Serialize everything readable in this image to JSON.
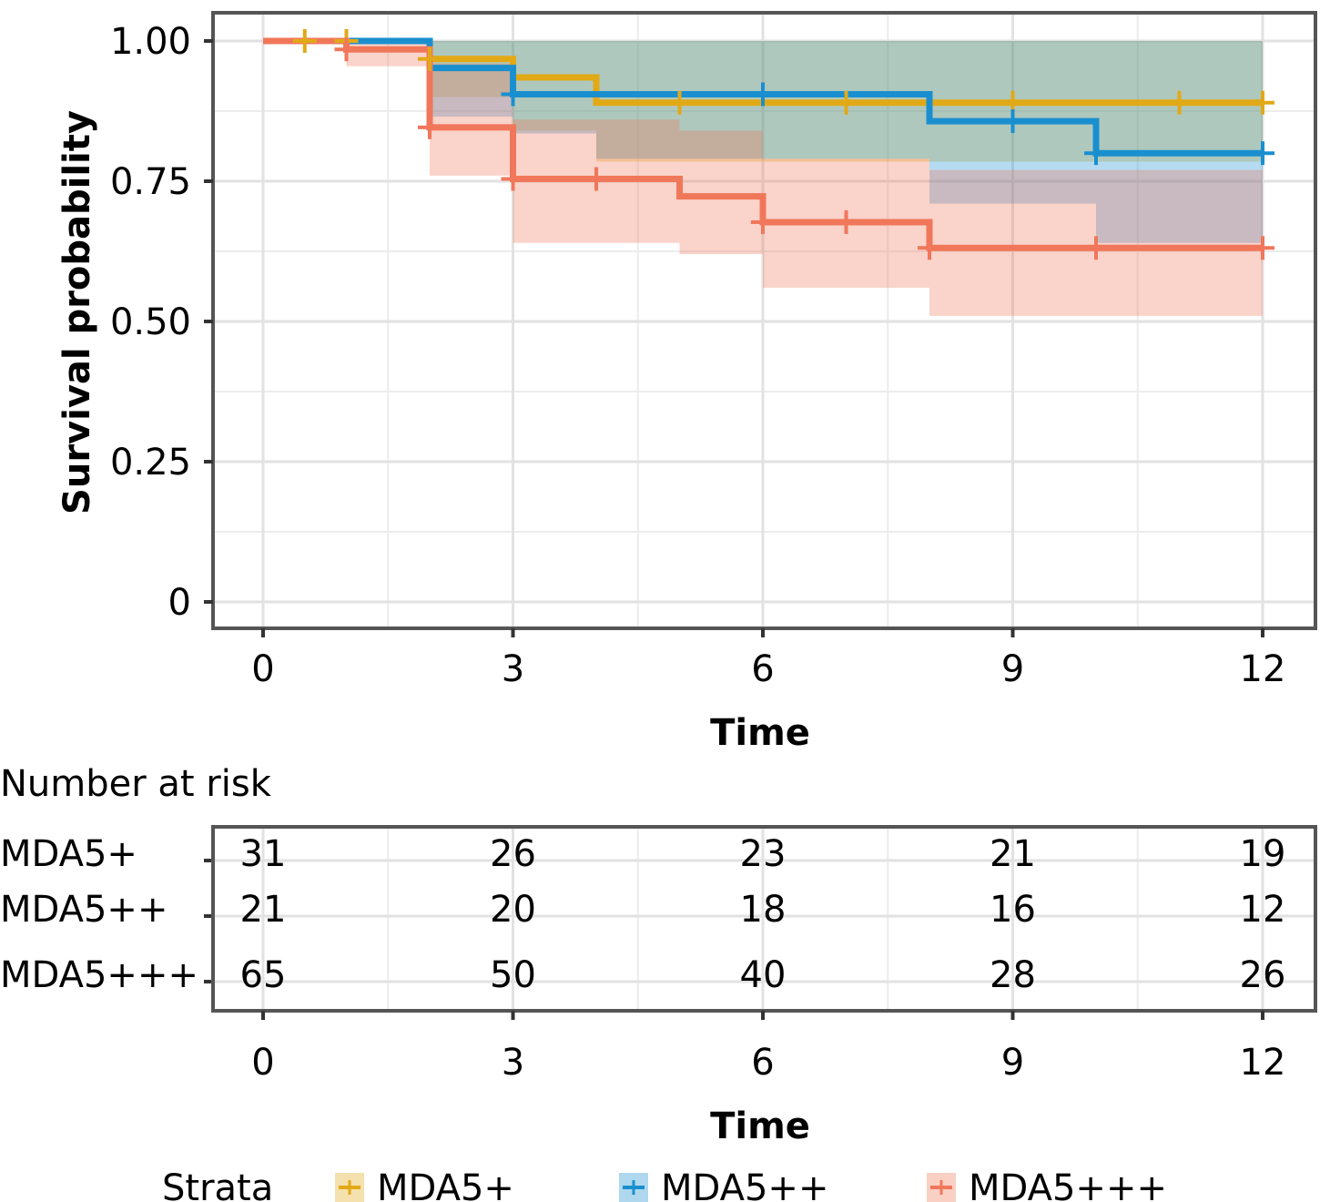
{
  "chart_data": [
    {
      "type": "line",
      "subtype": "kaplan-meier step",
      "xlabel": "Time",
      "ylabel": "Survival probability",
      "xlim": [
        0,
        12
      ],
      "ylim": [
        0,
        1
      ],
      "xticks": [
        "0",
        "3",
        "6",
        "9",
        "12"
      ],
      "xtick_values": [
        0,
        3,
        6,
        9,
        12
      ],
      "yticks": [
        "0",
        "0.25",
        "0.50",
        "0.75",
        "1.00"
      ],
      "ytick_values": [
        0,
        0.25,
        0.5,
        0.75,
        1.0
      ],
      "grid": true,
      "series": [
        {
          "name": "MDA5+",
          "color": "#E2A917",
          "steps": {
            "t": [
              0,
              2,
              3,
              4
            ],
            "s": [
              1.0,
              0.968,
              0.935,
              0.89
            ]
          },
          "ci_lower": {
            "t": [
              0,
              2,
              3,
              4
            ],
            "v": [
              1.0,
              0.9,
              0.84,
              0.785
            ]
          },
          "ci_upper": {
            "t": [
              0,
              2,
              3,
              4
            ],
            "v": [
              1.0,
              1.0,
              1.0,
              1.0
            ]
          },
          "censor_times": [
            0.5,
            1,
            2,
            5,
            7,
            9,
            11,
            12
          ]
        },
        {
          "name": "MDA5++",
          "color": "#1A8FCF",
          "steps": {
            "t": [
              0,
              2,
              3,
              8,
              10
            ],
            "s": [
              1.0,
              0.952,
              0.905,
              0.857,
              0.8
            ]
          },
          "ci_lower": {
            "t": [
              0,
              2,
              3,
              4,
              8,
              10
            ],
            "v": [
              1.0,
              0.865,
              0.835,
              0.79,
              0.71,
              0.64
            ]
          },
          "ci_upper": {
            "t": [
              0,
              2,
              3,
              8,
              10
            ],
            "v": [
              1.0,
              1.0,
              1.0,
              1.0,
              1.0
            ]
          },
          "censor_times": [
            3,
            6,
            9,
            10,
            12
          ]
        },
        {
          "name": "MDA5+++",
          "color": "#F0775A",
          "steps": {
            "t": [
              0,
              1,
              2,
              3,
              5,
              6,
              8
            ],
            "s": [
              1.0,
              0.985,
              0.846,
              0.754,
              0.723,
              0.677,
              0.631
            ]
          },
          "ci_lower": {
            "t": [
              0,
              1,
              2,
              3,
              5,
              6,
              8
            ],
            "v": [
              1.0,
              0.955,
              0.76,
              0.64,
              0.62,
              0.56,
              0.51
            ]
          },
          "ci_upper": {
            "t": [
              0,
              1,
              2,
              3,
              5,
              6,
              8
            ],
            "v": [
              1.0,
              1.0,
              0.96,
              0.86,
              0.84,
              0.79,
              0.77
            ]
          },
          "censor_times": [
            1,
            2,
            3,
            4,
            6,
            7,
            8,
            10,
            12
          ]
        }
      ]
    },
    {
      "type": "table",
      "title": "Number at risk",
      "xlabel": "Time",
      "xticks": [
        "0",
        "3",
        "6",
        "9",
        "12"
      ],
      "rows": [
        {
          "name": "MDA5+",
          "values": [
            "31",
            "26",
            "23",
            "21",
            "19"
          ]
        },
        {
          "name": "MDA5++",
          "values": [
            "21",
            "20",
            "18",
            "16",
            "12"
          ]
        },
        {
          "name": "MDA5+++",
          "values": [
            "65",
            "50",
            "40",
            "28",
            "26"
          ]
        }
      ]
    }
  ],
  "legend": {
    "title": "Strata",
    "placement": "bottom",
    "items": [
      "MDA5+",
      "MDA5++",
      "MDA5+++"
    ]
  }
}
